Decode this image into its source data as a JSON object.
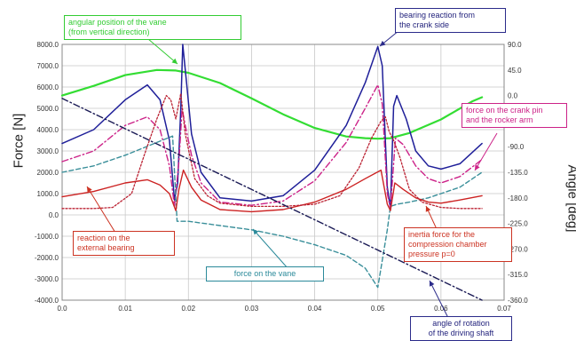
{
  "chart_data": {
    "type": "line",
    "ylabel_left": "Force [N]",
    "ylabel_right": "Angle [deg]",
    "xlim": [
      0.0,
      0.07
    ],
    "ylim_left": [
      -4000,
      8000
    ],
    "ylim_right": [
      -360,
      90
    ],
    "grid": true,
    "x_ticks": [
      "0.0",
      "0.01",
      "0.02",
      "0.03",
      "0.04",
      "0.05",
      "0.06",
      "0.07"
    ],
    "y_ticks_left": [
      "8000.0",
      "7000.0",
      "6000.0",
      "5000.0",
      "4000.0",
      "3000.0",
      "2000.0",
      "1000.0",
      "0.0",
      "-1000.0",
      "-2000.0",
      "-3000.0",
      "-4000.0"
    ],
    "y_ticks_right": [
      "90.0",
      "45.0",
      "0.0",
      "-45.0",
      "-90.0",
      "-135.0",
      "-180.0",
      "-225.0",
      "-270.0",
      "-315.0",
      "-360.0"
    ],
    "series": [
      {
        "name": "angular position of the vane (from vertical direction)",
        "axis": "right",
        "color": "#33dd33",
        "style": "solid",
        "width": 2.2,
        "points": [
          [
            0.0,
            0
          ],
          [
            0.005,
            17
          ],
          [
            0.01,
            36
          ],
          [
            0.015,
            45
          ],
          [
            0.018,
            44
          ],
          [
            0.02,
            40
          ],
          [
            0.025,
            22
          ],
          [
            0.03,
            -5
          ],
          [
            0.035,
            -33
          ],
          [
            0.04,
            -57
          ],
          [
            0.045,
            -72
          ],
          [
            0.048,
            -75
          ],
          [
            0.05,
            -76
          ],
          [
            0.052,
            -75
          ],
          [
            0.055,
            -66
          ],
          [
            0.06,
            -42
          ],
          [
            0.065,
            -10
          ],
          [
            0.0665,
            -3
          ]
        ]
      },
      {
        "name": "bearing reaction from the crank side",
        "axis": "left",
        "color": "#1f1f99",
        "style": "solid",
        "width": 1.5,
        "points": [
          [
            0.0,
            3350
          ],
          [
            0.005,
            4000
          ],
          [
            0.01,
            5400
          ],
          [
            0.0135,
            6100
          ],
          [
            0.0155,
            5400
          ],
          [
            0.017,
            3500
          ],
          [
            0.0178,
            700
          ],
          [
            0.0183,
            1500
          ],
          [
            0.0188,
            5000
          ],
          [
            0.0191,
            8000
          ],
          [
            0.0197,
            6200
          ],
          [
            0.0205,
            3800
          ],
          [
            0.022,
            2000
          ],
          [
            0.025,
            800
          ],
          [
            0.03,
            650
          ],
          [
            0.035,
            900
          ],
          [
            0.04,
            2100
          ],
          [
            0.045,
            4200
          ],
          [
            0.048,
            6200
          ],
          [
            0.05,
            7900
          ],
          [
            0.0507,
            7000
          ],
          [
            0.0515,
            1300
          ],
          [
            0.052,
            300
          ],
          [
            0.0525,
            5100
          ],
          [
            0.053,
            5600
          ],
          [
            0.0545,
            4500
          ],
          [
            0.056,
            3000
          ],
          [
            0.058,
            2300
          ],
          [
            0.06,
            2150
          ],
          [
            0.063,
            2400
          ],
          [
            0.0665,
            3350
          ]
        ]
      },
      {
        "name": "force on the crank pin and the rocker arm",
        "axis": "left",
        "color": "#cc2288",
        "style": "dashdot",
        "width": 1.4,
        "points": [
          [
            0.0,
            2500
          ],
          [
            0.005,
            3000
          ],
          [
            0.01,
            4200
          ],
          [
            0.0135,
            4600
          ],
          [
            0.0155,
            4000
          ],
          [
            0.017,
            2300
          ],
          [
            0.0178,
            400
          ],
          [
            0.0185,
            2500
          ],
          [
            0.019,
            5000
          ],
          [
            0.0195,
            4200
          ],
          [
            0.0205,
            2800
          ],
          [
            0.022,
            1500
          ],
          [
            0.025,
            600
          ],
          [
            0.03,
            450
          ],
          [
            0.035,
            650
          ],
          [
            0.04,
            1600
          ],
          [
            0.045,
            3400
          ],
          [
            0.048,
            5000
          ],
          [
            0.05,
            6100
          ],
          [
            0.0507,
            5200
          ],
          [
            0.0515,
            1000
          ],
          [
            0.052,
            300
          ],
          [
            0.0528,
            3600
          ],
          [
            0.054,
            3300
          ],
          [
            0.056,
            2300
          ],
          [
            0.058,
            1700
          ],
          [
            0.06,
            1500
          ],
          [
            0.063,
            1800
          ],
          [
            0.0665,
            2600
          ]
        ]
      },
      {
        "name": "force on the vane",
        "axis": "left",
        "color": "#3a8f9a",
        "style": "dashed",
        "width": 1.4,
        "points": [
          [
            0.0,
            2000
          ],
          [
            0.005,
            2300
          ],
          [
            0.01,
            2800
          ],
          [
            0.015,
            3400
          ],
          [
            0.0175,
            3700
          ],
          [
            0.0182,
            -300
          ],
          [
            0.02,
            -300
          ],
          [
            0.025,
            -500
          ],
          [
            0.03,
            -700
          ],
          [
            0.035,
            -1000
          ],
          [
            0.04,
            -1400
          ],
          [
            0.045,
            -1900
          ],
          [
            0.048,
            -2500
          ],
          [
            0.05,
            -3400
          ],
          [
            0.0515,
            -700
          ],
          [
            0.052,
            400
          ],
          [
            0.053,
            500
          ],
          [
            0.055,
            600
          ],
          [
            0.058,
            800
          ],
          [
            0.06,
            1000
          ],
          [
            0.063,
            1300
          ],
          [
            0.0665,
            2000
          ]
        ]
      },
      {
        "name": "reaction on the external bearing",
        "axis": "left",
        "color": "#cc2222",
        "style": "solid",
        "width": 1.4,
        "points": [
          [
            0.0,
            850
          ],
          [
            0.005,
            1100
          ],
          [
            0.01,
            1500
          ],
          [
            0.0135,
            1650
          ],
          [
            0.0155,
            1400
          ],
          [
            0.017,
            1000
          ],
          [
            0.018,
            200
          ],
          [
            0.0185,
            1200
          ],
          [
            0.0192,
            2100
          ],
          [
            0.0205,
            1300
          ],
          [
            0.022,
            700
          ],
          [
            0.025,
            250
          ],
          [
            0.03,
            150
          ],
          [
            0.035,
            250
          ],
          [
            0.04,
            600
          ],
          [
            0.045,
            1200
          ],
          [
            0.048,
            1700
          ],
          [
            0.0505,
            2100
          ],
          [
            0.0515,
            500
          ],
          [
            0.052,
            200
          ],
          [
            0.0527,
            1500
          ],
          [
            0.054,
            1200
          ],
          [
            0.056,
            800
          ],
          [
            0.058,
            600
          ],
          [
            0.06,
            550
          ],
          [
            0.063,
            700
          ],
          [
            0.0665,
            900
          ]
        ]
      },
      {
        "name": "inertia force for the compression chamber pressure p=0",
        "axis": "left",
        "color": "#bb2233",
        "style": "dotted",
        "width": 1.3,
        "points": [
          [
            0.0,
            300
          ],
          [
            0.005,
            300
          ],
          [
            0.008,
            350
          ],
          [
            0.011,
            1000
          ],
          [
            0.013,
            2800
          ],
          [
            0.015,
            4500
          ],
          [
            0.0165,
            5600
          ],
          [
            0.0172,
            5400
          ],
          [
            0.018,
            4500
          ],
          [
            0.0188,
            5700
          ],
          [
            0.0195,
            3800
          ],
          [
            0.021,
            1700
          ],
          [
            0.023,
            900
          ],
          [
            0.025,
            550
          ],
          [
            0.03,
            400
          ],
          [
            0.035,
            400
          ],
          [
            0.04,
            500
          ],
          [
            0.044,
            900
          ],
          [
            0.047,
            2200
          ],
          [
            0.049,
            3600
          ],
          [
            0.0505,
            4400
          ],
          [
            0.0512,
            4600
          ],
          [
            0.0518,
            3900
          ],
          [
            0.0525,
            3500
          ],
          [
            0.0535,
            2700
          ],
          [
            0.055,
            1200
          ],
          [
            0.057,
            600
          ],
          [
            0.06,
            350
          ],
          [
            0.063,
            300
          ],
          [
            0.0665,
            300
          ]
        ]
      },
      {
        "name": "angle of rotation of the driving shaft",
        "axis": "right",
        "color": "#1a1a55",
        "style": "dashdot",
        "width": 1.4,
        "points": [
          [
            0.0,
            -5
          ],
          [
            0.0665,
            -360
          ]
        ]
      }
    ],
    "annotations": [
      {
        "id": "angular",
        "text_lines": [
          "angular position of the vane",
          "(from vertical direction)"
        ]
      },
      {
        "id": "bearing",
        "text_lines": [
          "bearing reaction from",
          "the crank side"
        ]
      },
      {
        "id": "crankpin",
        "text_lines": [
          "force on the crank pin",
          "and the rocker arm"
        ]
      },
      {
        "id": "reaction",
        "text_lines": [
          "reaction on the",
          "external bearing"
        ]
      },
      {
        "id": "inertia",
        "text_lines": [
          "inertia force for the",
          "compression chamber",
          "pressure p=0"
        ]
      },
      {
        "id": "vane",
        "text_lines": [
          "force on the vane"
        ]
      },
      {
        "id": "rotation",
        "text_lines": [
          "angle of rotation",
          "of the driving shaft"
        ]
      }
    ]
  }
}
